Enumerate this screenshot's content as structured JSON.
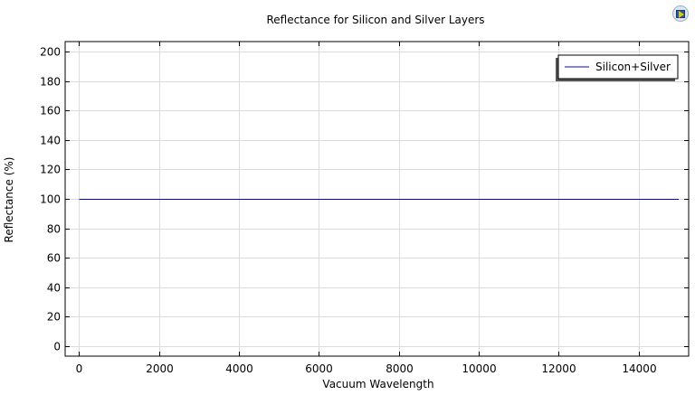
{
  "app_icon": "comsol-plot-icon",
  "chart_data": {
    "type": "line",
    "title": "Reflectance for Silicon and Silver Layers",
    "xlabel": "Vacuum Wavelength",
    "ylabel": "Reflectance (%)",
    "xlim": [
      -350,
      15250
    ],
    "ylim": [
      -7,
      207
    ],
    "xticks": [
      0,
      2000,
      4000,
      6000,
      8000,
      10000,
      12000,
      14000
    ],
    "yticks": [
      0,
      20,
      40,
      60,
      80,
      100,
      120,
      140,
      160,
      180,
      200
    ],
    "grid": true,
    "legend_position": "top-right",
    "series": [
      {
        "name": "Silicon+Silver",
        "color": "#0000cc",
        "x": [
          0,
          15000
        ],
        "y": [
          100,
          100
        ]
      }
    ]
  }
}
